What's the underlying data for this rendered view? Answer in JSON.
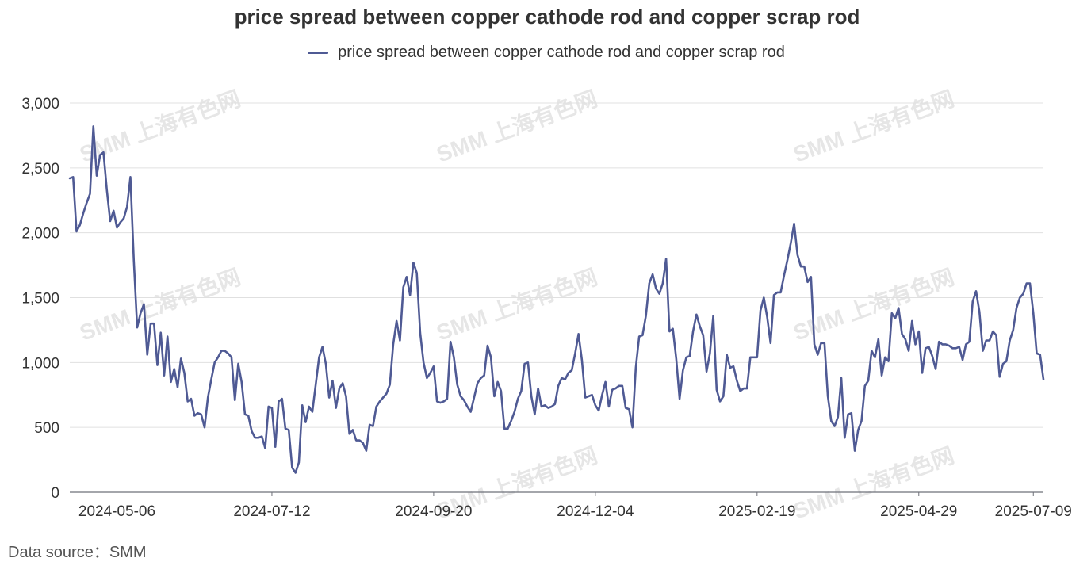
{
  "chart_data": {
    "type": "line",
    "title": "price spread between copper cathode rod and copper scrap rod",
    "series": [
      {
        "name": "price spread between copper cathode rod and copper scrap rod",
        "color": "#4f5a94",
        "values": [
          2420,
          2430,
          2010,
          2060,
          2150,
          2230,
          2300,
          2820,
          2440,
          2600,
          2620,
          2330,
          2090,
          2170,
          2040,
          2080,
          2110,
          2200,
          2430,
          1790,
          1270,
          1380,
          1450,
          1060,
          1300,
          1300,
          980,
          1230,
          900,
          1200,
          850,
          950,
          810,
          1030,
          920,
          700,
          720,
          590,
          610,
          600,
          500,
          730,
          870,
          1000,
          1040,
          1090,
          1090,
          1070,
          1040,
          710,
          990,
          850,
          600,
          590,
          470,
          420,
          420,
          430,
          340,
          660,
          650,
          350,
          700,
          720,
          490,
          480,
          190,
          150,
          230,
          670,
          540,
          660,
          620,
          830,
          1040,
          1120,
          990,
          730,
          860,
          650,
          800,
          840,
          740,
          450,
          480,
          400,
          400,
          380,
          320,
          520,
          510,
          660,
          700,
          730,
          760,
          830,
          1140,
          1320,
          1170,
          1580,
          1660,
          1520,
          1770,
          1690,
          1230,
          1000,
          880,
          920,
          970,
          700,
          690,
          700,
          720,
          1160,
          1040,
          830,
          740,
          710,
          660,
          620,
          730,
          840,
          880,
          900,
          1130,
          1040,
          740,
          850,
          780,
          490,
          490,
          550,
          620,
          720,
          780,
          990,
          1000,
          740,
          600,
          800,
          660,
          670,
          650,
          660,
          680,
          820,
          880,
          870,
          920,
          940,
          1070,
          1220,
          1020,
          730,
          740,
          750,
          670,
          630,
          750,
          850,
          660,
          790,
          800,
          820,
          820,
          650,
          640,
          500,
          960,
          1200,
          1210,
          1360,
          1610,
          1680,
          1570,
          1530,
          1610,
          1800,
          1240,
          1260,
          1030,
          720,
          940,
          1040,
          1050,
          1240,
          1370,
          1280,
          1210,
          930,
          1070,
          1360,
          790,
          700,
          740,
          1060,
          960,
          970,
          860,
          780,
          800,
          800,
          1040,
          1040,
          1040,
          1400,
          1500,
          1350,
          1150,
          1520,
          1540,
          1540,
          1670,
          1790,
          1920,
          2070,
          1830,
          1740,
          1740,
          1620,
          1660,
          1140,
          1060,
          1150,
          1150,
          740,
          550,
          510,
          580,
          880,
          420,
          600,
          610,
          320,
          480,
          550,
          820,
          860,
          1090,
          1040,
          1180,
          900,
          1040,
          1010,
          1380,
          1340,
          1420,
          1220,
          1180,
          1090,
          1320,
          1140,
          1240,
          920,
          1110,
          1120,
          1050,
          950,
          1160,
          1140,
          1140,
          1130,
          1110,
          1110,
          1120,
          1020,
          1140,
          1160,
          1470,
          1550,
          1390,
          1090,
          1170,
          1170,
          1240,
          1210,
          890,
          990,
          1010,
          1170,
          1250,
          1420,
          1500,
          1530,
          1610,
          1610,
          1380,
          1070,
          1060,
          870
        ]
      }
    ],
    "x_tick_labels": [
      "2024-05-06",
      "2024-07-12",
      "2024-09-20",
      "2024-12-04",
      "2025-02-19",
      "2025-04-29",
      "2025-07-09"
    ],
    "x_tick_indices": [
      14,
      60,
      108,
      156,
      204,
      252,
      286
    ],
    "y_ticks": [
      "0",
      "500",
      "1,000",
      "1,500",
      "2,000",
      "2,500",
      "3,000"
    ],
    "ylim": [
      0,
      3000
    ],
    "grid": true,
    "legend_position": "top-center"
  },
  "watermark": "SMM 上海有色网",
  "footer": {
    "source": "Data source：SMM"
  }
}
